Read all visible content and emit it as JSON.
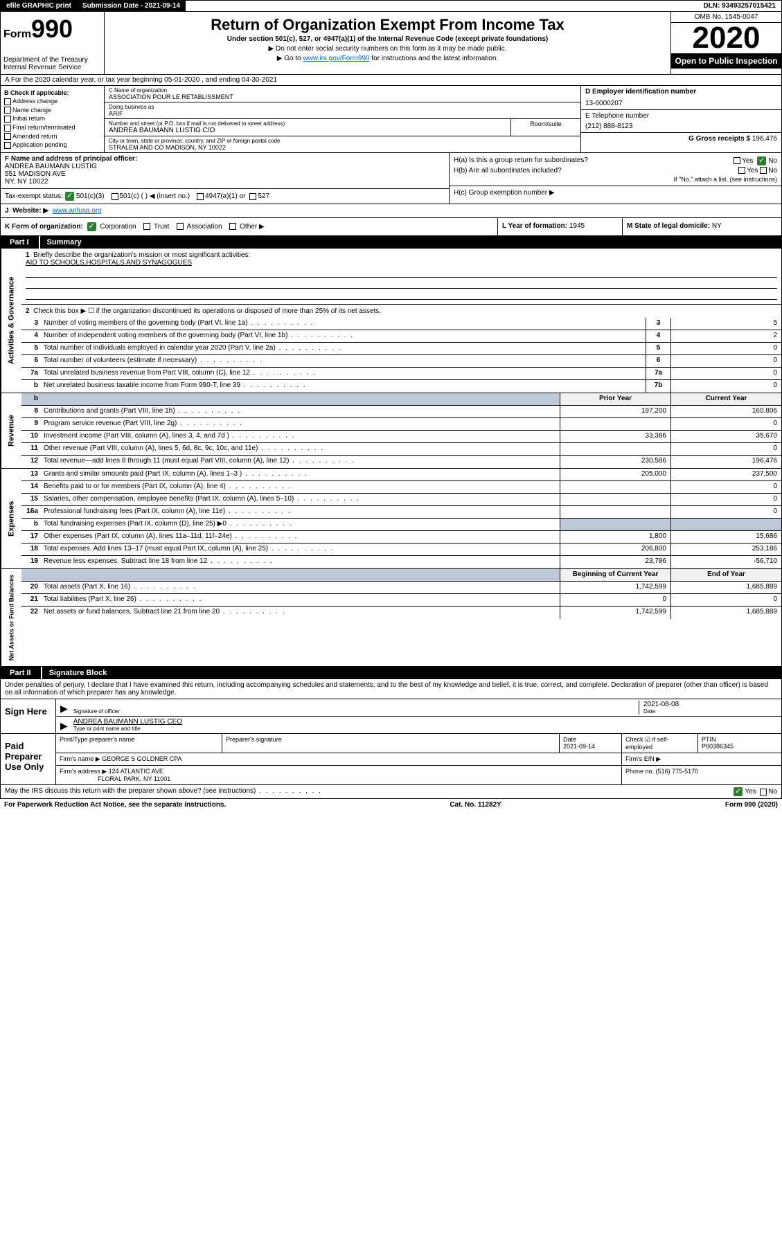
{
  "top": {
    "efile": "efile GRAPHIC print",
    "submission": "Submission Date - 2021-09-14",
    "dln": "DLN: 93493257015421"
  },
  "header": {
    "form_prefix": "Form",
    "form_number": "990",
    "dept1": "Department of the Treasury",
    "dept2": "Internal Revenue Service",
    "title": "Return of Organization Exempt From Income Tax",
    "subtitle": "Under section 501(c), 527, or 4947(a)(1) of the Internal Revenue Code (except private foundations)",
    "note1": "▶ Do not enter social security numbers on this form as it may be made public.",
    "note2_pre": "▶ Go to ",
    "note2_link": "www.irs.gov/Form990",
    "note2_post": " for instructions and the latest information.",
    "omb": "OMB No. 1545-0047",
    "year": "2020",
    "open": "Open to Public Inspection"
  },
  "rowA": "A For the 2020 calendar year, or tax year beginning 05-01-2020    , and ending 04-30-2021",
  "boxB": {
    "title": "B Check if applicable:",
    "opts": [
      "Address change",
      "Name change",
      "Initial return",
      "Final return/terminated",
      "Amended return",
      "Application pending"
    ]
  },
  "boxC": {
    "name_label": "C Name of organization",
    "name": "ASSOCIATION POUR LE RETABLISSMENT",
    "dba_label": "Doing business as",
    "dba": "ARIF",
    "addr_label": "Number and street (or P.O. box if mail is not delivered to street address)",
    "room_label": "Room/suite",
    "addr": "ANDREA BAUMANN LUSTIG C/O",
    "city_label": "City or town, state or province, country, and ZIP or foreign postal code",
    "city": "STRALEM AND CO MADISON, NY  10022"
  },
  "boxD": {
    "label": "D Employer identification number",
    "val": "13-6000207"
  },
  "boxE": {
    "label": "E Telephone number",
    "val": "(212) 888-8123"
  },
  "boxG": {
    "label": "G Gross receipts $",
    "val": "196,476"
  },
  "boxF": {
    "label": "F  Name and address of principal officer:",
    "name": "ANDREA BAUMANN LUSTIG",
    "addr1": "551 MADISON AVE",
    "addr2": "NY, NY  10022"
  },
  "boxH": {
    "a": "H(a)  Is this a group return for subordinates?",
    "b": "H(b)  Are all subordinates included?",
    "b_note": "If \"No,\" attach a list. (see instructions)",
    "c": "H(c)  Group exemption number ▶",
    "yes": "Yes",
    "no": "No"
  },
  "rowI": {
    "label": "Tax-exempt status:",
    "o1": "501(c)(3)",
    "o2": "501(c) (  ) ◀ (insert no.)",
    "o3": "4947(a)(1) or",
    "o4": "527"
  },
  "rowJ": {
    "label": "J",
    "website_label": "Website: ▶",
    "website": "www.arifusa.org"
  },
  "rowK": "K Form of organization:",
  "rowK_opts": [
    "Corporation",
    "Trust",
    "Association",
    "Other ▶"
  ],
  "rowL": {
    "label": "L Year of formation:",
    "val": "1945"
  },
  "rowM": {
    "label": "M State of legal domicile:",
    "val": "NY"
  },
  "partI": {
    "label": "Part I",
    "title": "Summary"
  },
  "summary": {
    "q1": "Briefly describe the organization's mission or most significant activities:",
    "q1_ans": "AID TO SCHOOLS,HOSPITALS AND SYNAGOGUES",
    "q2": "Check this box ▶ ☐  if the organization discontinued its operations or disposed of more than 25% of its net assets.",
    "rows_gov": [
      {
        "n": "3",
        "d": "Number of voting members of the governing body (Part VI, line 1a)",
        "box": "3",
        "v": "5"
      },
      {
        "n": "4",
        "d": "Number of independent voting members of the governing body (Part VI, line 1b)",
        "box": "4",
        "v": "2"
      },
      {
        "n": "5",
        "d": "Total number of individuals employed in calendar year 2020 (Part V, line 2a)",
        "box": "5",
        "v": "0"
      },
      {
        "n": "6",
        "d": "Total number of volunteers (estimate if necessary)",
        "box": "6",
        "v": "0"
      },
      {
        "n": "7a",
        "d": "Total unrelated business revenue from Part VIII, column (C), line 12",
        "box": "7a",
        "v": "0"
      },
      {
        "n": "b",
        "d": "Net unrelated business taxable income from Form 990-T, line 39",
        "box": "7b",
        "v": "0"
      }
    ],
    "col_prior": "Prior Year",
    "col_current": "Current Year",
    "rows_rev": [
      {
        "n": "8",
        "d": "Contributions and grants (Part VIII, line 1h)",
        "p": "197,200",
        "c": "160,806"
      },
      {
        "n": "9",
        "d": "Program service revenue (Part VIII, line 2g)",
        "p": "",
        "c": "0"
      },
      {
        "n": "10",
        "d": "Investment income (Part VIII, column (A), lines 3, 4, and 7d )",
        "p": "33,386",
        "c": "35,670"
      },
      {
        "n": "11",
        "d": "Other revenue (Part VIII, column (A), lines 5, 6d, 8c, 9c, 10c, and 11e)",
        "p": "",
        "c": "0"
      },
      {
        "n": "12",
        "d": "Total revenue—add lines 8 through 11 (must equal Part VIII, column (A), line 12)",
        "p": "230,586",
        "c": "196,476"
      }
    ],
    "rows_exp": [
      {
        "n": "13",
        "d": "Grants and similar amounts paid (Part IX, column (A), lines 1–3 )",
        "p": "205,000",
        "c": "237,500"
      },
      {
        "n": "14",
        "d": "Benefits paid to or for members (Part IX, column (A), line 4)",
        "p": "",
        "c": "0"
      },
      {
        "n": "15",
        "d": "Salaries, other compensation, employee benefits (Part IX, column (A), lines 5–10)",
        "p": "",
        "c": "0"
      },
      {
        "n": "16a",
        "d": "Professional fundraising fees (Part IX, column (A), line 11e)",
        "p": "",
        "c": "0"
      },
      {
        "n": "b",
        "d": "Total fundraising expenses (Part IX, column (D), line 25) ▶0",
        "p": "shaded",
        "c": "shaded"
      },
      {
        "n": "17",
        "d": "Other expenses (Part IX, column (A), lines 11a–11d, 11f–24e)",
        "p": "1,800",
        "c": "15,686"
      },
      {
        "n": "18",
        "d": "Total expenses. Add lines 13–17 (must equal Part IX, column (A), line 25)",
        "p": "206,800",
        "c": "253,186"
      },
      {
        "n": "19",
        "d": "Revenue less expenses. Subtract line 18 from line 12",
        "p": "23,786",
        "c": "-56,710"
      }
    ],
    "col_begin": "Beginning of Current Year",
    "col_end": "End of Year",
    "rows_net": [
      {
        "n": "20",
        "d": "Total assets (Part X, line 16)",
        "p": "1,742,599",
        "c": "1,685,889"
      },
      {
        "n": "21",
        "d": "Total liabilities (Part X, line 26)",
        "p": "0",
        "c": "0"
      },
      {
        "n": "22",
        "d": "Net assets or fund balances. Subtract line 21 from line 20",
        "p": "1,742,599",
        "c": "1,685,889"
      }
    ]
  },
  "side_labels": {
    "gov": "Activities & Governance",
    "rev": "Revenue",
    "exp": "Expenses",
    "net": "Net Assets or Fund Balances"
  },
  "partII": {
    "label": "Part II",
    "title": "Signature Block"
  },
  "sig": {
    "intro": "Under penalties of perjury, I declare that I have examined this return, including accompanying schedules and statements, and to the best of my knowledge and belief, it is true, correct, and complete. Declaration of preparer (other than officer) is based on all information of which preparer has any knowledge.",
    "sign_here": "Sign Here",
    "sig_officer": "Signature of officer",
    "date": "2021-08-08",
    "date_label": "Date",
    "name": "ANDREA BAUMANN LUSTIG  CEO",
    "name_label": "Type or print name and title",
    "paid": "Paid Preparer Use Only",
    "h1": "Print/Type preparer's name",
    "h2": "Preparer's signature",
    "h3": "Date",
    "h4": "Check ☑ if self-employed",
    "h5": "PTIN",
    "prep_date": "2021-09-14",
    "ptin": "P00386345",
    "firm_name_label": "Firm's name   ▶",
    "firm_name": "GEORGE S GOLDNER CPA",
    "firm_ein_label": "Firm's EIN ▶",
    "firm_addr_label": "Firm's address ▶",
    "firm_addr1": "124 ATLANTIC AVE",
    "firm_addr2": "FLORAL PARK, NY  11001",
    "phone_label": "Phone no.",
    "phone": "(516) 775-5170"
  },
  "footer": {
    "discuss": "May the IRS discuss this return with the preparer shown above? (see instructions)",
    "yes": "Yes",
    "no": "No",
    "pra": "For Paperwork Reduction Act Notice, see the separate instructions.",
    "cat": "Cat. No. 11282Y",
    "form": "Form 990 (2020)"
  }
}
